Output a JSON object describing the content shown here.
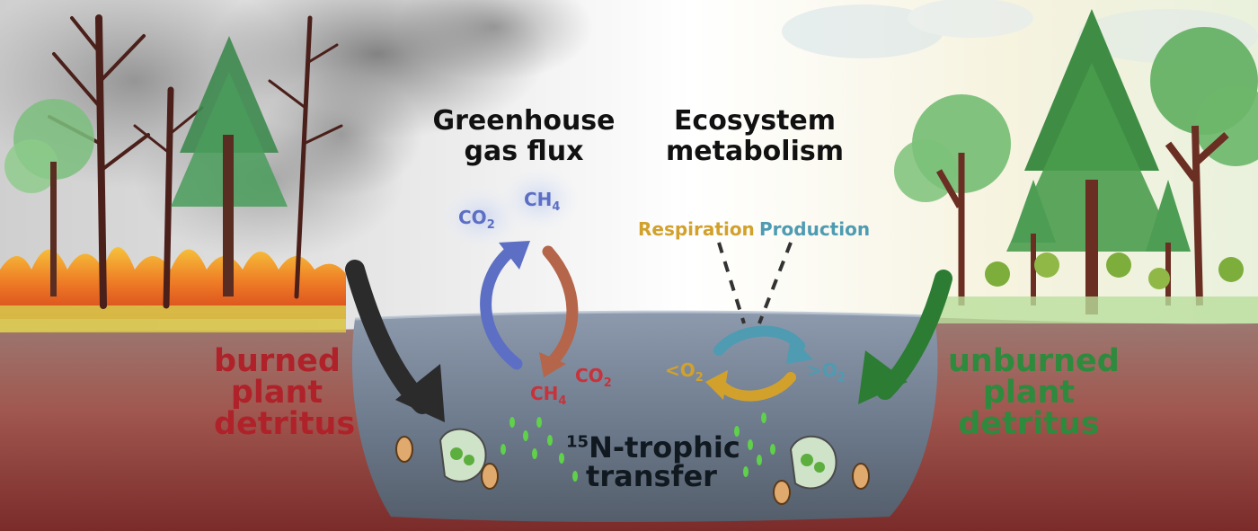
{
  "titles": {
    "ghg_line1": "Greenhouse",
    "ghg_line2": "gas flux",
    "eco_line1": "Ecosystem",
    "eco_line2": "metabolism"
  },
  "labels": {
    "burned": [
      "burned",
      "plant",
      "detritus"
    ],
    "unburned": [
      "unburned",
      "plant",
      "detritus"
    ],
    "respiration": "Respiration",
    "production": "Production",
    "n_sup": "15",
    "n_line1": "N-trophic",
    "n_line2": "transfer",
    "co2_prefix": "CO",
    "ch4_prefix": "CH",
    "o2_prefix": "O",
    "sub2": "2",
    "sub4": "4",
    "lt": "<",
    "gt": ">"
  },
  "colors": {
    "burned_text": "#b0222a",
    "unburned_text": "#2e8a3c",
    "blue_arrow": "#5c6fc4",
    "brown_arrow": "#b5654a",
    "red_gas": "#c8323a",
    "gold": "#d2a12c",
    "teal": "#4e9bb2",
    "water": "#6f7f92",
    "soil": "#8a3a35"
  },
  "icons": [
    "fire-icon",
    "smoke-cloud-icon",
    "dead-tree-icon",
    "pine-tree-icon",
    "deciduous-tree-icon",
    "shrub-icon",
    "zooplankton-icon",
    "cycle-arrow-icon",
    "detritus-arrow-icon"
  ]
}
